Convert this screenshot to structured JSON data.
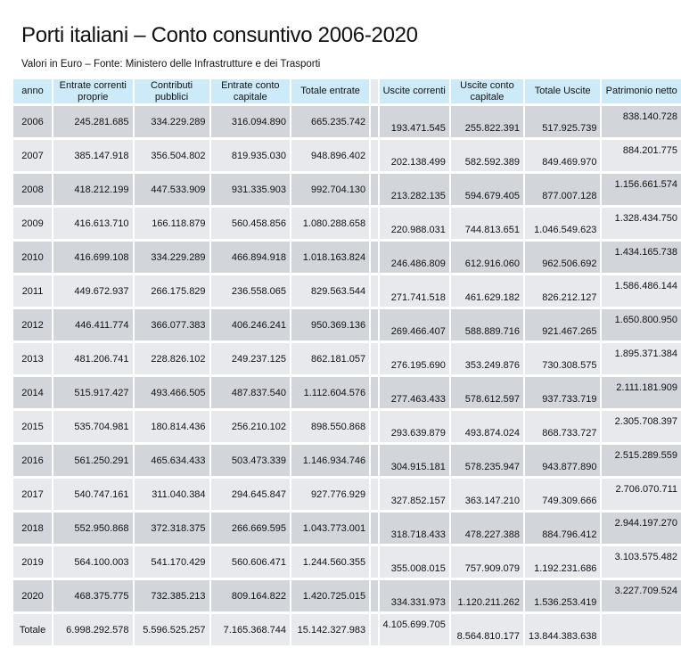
{
  "title": "Porti italiani – Conto consuntivo 2006-2020",
  "subtitle": "Valori in Euro – Fonte: Ministero delle Infrastrutture e dei Trasporti",
  "headers": [
    "anno",
    "Entrate correnti proprie",
    "Contributi pubblici",
    "Entrate conto capitale",
    "Totale entrate",
    "Uscite correnti",
    "Uscite conto capitale",
    "Totale Uscite",
    "Patrimonio netto"
  ],
  "rows": [
    [
      "2006",
      "245.281.685",
      "334.229.289",
      "316.094.890",
      "665.235.742",
      "193.471.545",
      "255.822.391",
      "517.925.739",
      "838.140.728"
    ],
    [
      "2007",
      "385.147.918",
      "356.504.802",
      "819.935.030",
      "948.896.402",
      "202.138.499",
      "582.592.389",
      "849.469.970",
      "884.201.775"
    ],
    [
      "2008",
      "418.212.199",
      "447.533.909",
      "931.335.903",
      "992.704.130",
      "213.282.135",
      "594.679.405",
      "877.007.128",
      "1.156.661.574"
    ],
    [
      "2009",
      "416.613.710",
      "166.118.879",
      "560.458.856",
      "1.080.288.658",
      "220.988.031",
      "744.813.651",
      "1.046.549.623",
      "1.328.434.750"
    ],
    [
      "2010",
      "416.699.108",
      "334.229.289",
      "466.894.918",
      "1.018.163.824",
      "246.486.809",
      "612.916.060",
      "962.506.692",
      "1.434.165.738"
    ],
    [
      "2011",
      "449.672.937",
      "266.175.829",
      "236.558.065",
      "829.563.544",
      "271.741.518",
      "461.629.182",
      "826.212.127",
      "1.586.486.144"
    ],
    [
      "2012",
      "446.411.774",
      "366.077.383",
      "406.246.241",
      "950.369.136",
      "269.466.407",
      "588.889.716",
      "921.467.265",
      "1.650.800.950"
    ],
    [
      "2013",
      "481.206.741",
      "228.826.102",
      "249.237.125",
      "862.181.057",
      "276.195.690",
      "353.249.876",
      "730.308.575",
      "1.895.371.384"
    ],
    [
      "2014",
      "515.917.427",
      "493.466.505",
      "487.837.540",
      "1.112.604.576",
      "277.463.433",
      "578.612.597",
      "937.733.719",
      "2.111.181.909"
    ],
    [
      "2015",
      "535.704.981",
      "180.814.436",
      "256.210.102",
      "898.550.868",
      "293.639.879",
      "493.874.024",
      "868.733.727",
      "2.305.708.397"
    ],
    [
      "2016",
      "561.250.291",
      "465.634.433",
      "503.473.339",
      "1.146.934.746",
      "304.915.181",
      "578.235.947",
      "943.877.890",
      "2.515.289.559"
    ],
    [
      "2017",
      "540.747.161",
      "311.040.384",
      "294.645.847",
      "927.776.929",
      "327.852.157",
      "363.147.210",
      "749.309.666",
      "2.706.070.711"
    ],
    [
      "2018",
      "552.950.868",
      "372.318.375",
      "266.669.595",
      "1.043.773.001",
      "318.718.433",
      "478.227.388",
      "884.796.412",
      "2.944.197.270"
    ],
    [
      "2019",
      "564.100.003",
      "541.170.429",
      "560.606.471",
      "1.244.560.355",
      "355.008.015",
      "757.909.079",
      "1.192.231.686",
      "3.103.575.482"
    ],
    [
      "2020",
      "468.375.775",
      "732.385.213",
      "809.164.822",
      "1.420.725.015",
      "334.331.973",
      "1.120.211.262",
      "1.536.253.419",
      "3.227.709.524"
    ]
  ],
  "total": [
    "Totale",
    "6.998.292.578",
    "5.596.525.257",
    "7.165.368.744",
    "15.142.327.983",
    "4.105.699.705",
    "8.564.810.177",
    "13.844.383.638",
    ""
  ]
}
